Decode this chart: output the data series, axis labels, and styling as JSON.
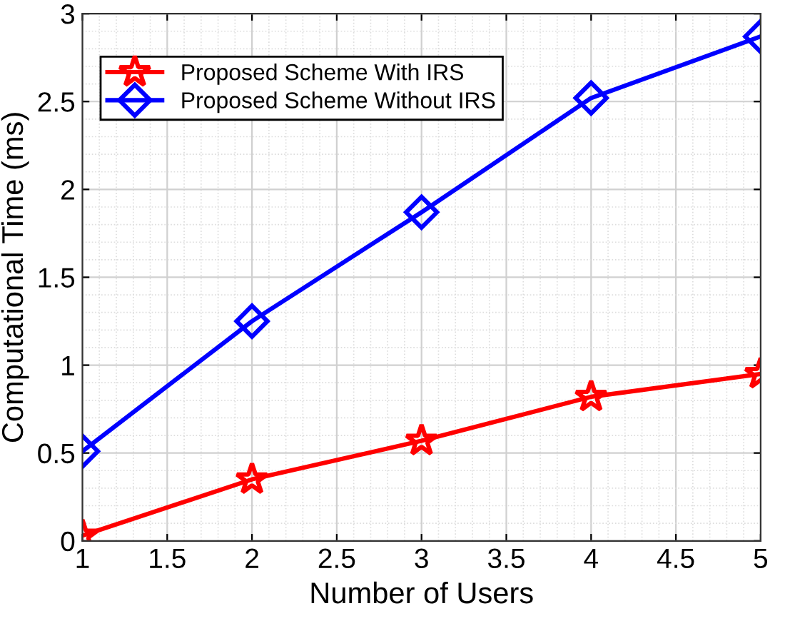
{
  "chart_data": {
    "type": "line",
    "xlabel": "Number of Users",
    "ylabel": "Computational Time (ms)",
    "x": [
      1,
      2,
      3,
      4,
      5
    ],
    "series": [
      {
        "name": "Proposed Scheme With IRS",
        "color": "#ff0000",
        "marker": "star",
        "values": [
          0.03,
          0.35,
          0.57,
          0.82,
          0.95
        ]
      },
      {
        "name": "Proposed Scheme Without IRS",
        "color": "#0000ff",
        "marker": "diamond",
        "values": [
          0.51,
          1.25,
          1.87,
          2.52,
          2.87
        ]
      }
    ],
    "xlim": [
      1,
      5
    ],
    "xticks": [
      1,
      1.5,
      2,
      2.5,
      3,
      3.5,
      4,
      4.5,
      5
    ],
    "ylim": [
      0,
      3
    ],
    "yticks": [
      0,
      0.5,
      1,
      1.5,
      2,
      2.5,
      3
    ],
    "grid": true,
    "legend": "top left",
    "line_style": "solid"
  }
}
